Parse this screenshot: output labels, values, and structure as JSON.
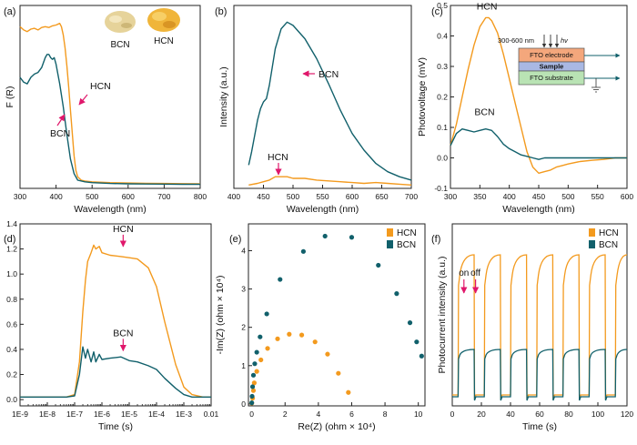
{
  "colors": {
    "hcn": "#f39a1e",
    "bcn": "#11606b",
    "arrow": "#e0176b",
    "axis": "#222222"
  },
  "chart_data": [
    {
      "panel_label": "(a)",
      "type": "line",
      "xlabel": "Wavelength (nm)",
      "ylabel": "F (R)",
      "xlim": [
        300,
        800
      ],
      "xticks": [
        "300",
        "400",
        "500",
        "600",
        "700",
        "800"
      ],
      "yticks": [],
      "annotations": [
        {
          "text": "HCN",
          "x": 462,
          "y": 0.57
        },
        {
          "text": "BCN",
          "x": 420,
          "y": 0.43
        }
      ],
      "image_labels": [
        "BCN",
        "HCN"
      ],
      "series": [
        {
          "name": "HCN",
          "color": "hcn",
          "x": [
            300,
            310,
            320,
            330,
            340,
            350,
            360,
            370,
            380,
            390,
            400,
            410,
            415,
            420,
            425,
            430,
            435,
            440,
            445,
            450,
            455,
            460,
            470,
            480,
            500,
            550,
            600,
            650,
            700,
            750,
            800
          ],
          "y": [
            0.99,
            0.97,
            0.96,
            0.975,
            0.98,
            0.97,
            0.985,
            0.99,
            0.985,
            0.995,
            1.0,
            1.01,
            0.99,
            0.94,
            0.86,
            0.75,
            0.62,
            0.48,
            0.34,
            0.2,
            0.11,
            0.07,
            0.05,
            0.045,
            0.04,
            0.035,
            0.033,
            0.031,
            0.03,
            0.029,
            0.028
          ]
        },
        {
          "name": "BCN",
          "color": "bcn",
          "x": [
            300,
            310,
            320,
            330,
            340,
            350,
            360,
            370,
            375,
            380,
            385,
            390,
            395,
            400,
            410,
            420,
            430,
            440,
            450,
            460,
            480,
            500,
            550,
            600,
            650,
            700,
            750,
            800
          ],
          "y": [
            0.68,
            0.65,
            0.64,
            0.68,
            0.7,
            0.71,
            0.74,
            0.8,
            0.82,
            0.82,
            0.8,
            0.79,
            0.8,
            0.76,
            0.64,
            0.5,
            0.33,
            0.18,
            0.09,
            0.05,
            0.04,
            0.035,
            0.03,
            0.028,
            0.027,
            0.026,
            0.025,
            0.025
          ]
        }
      ]
    },
    {
      "panel_label": "(b)",
      "type": "line",
      "xlabel": "Wavelength (nm)",
      "ylabel": "Intensity (a.u.)",
      "xlim": [
        400,
        700
      ],
      "xticks": [
        "400",
        "450",
        "500",
        "550",
        "600",
        "650",
        "700"
      ],
      "yticks": [],
      "annotations": [
        {
          "text": "BCN",
          "x": 540,
          "y": 0.78
        },
        {
          "text": "HCN",
          "x": 480,
          "y": 0.15
        }
      ],
      "series": [
        {
          "name": "BCN",
          "color": "bcn",
          "x": [
            425,
            430,
            440,
            445,
            450,
            455,
            460,
            470,
            480,
            490,
            500,
            520,
            540,
            560,
            580,
            600,
            620,
            640,
            660,
            680,
            700
          ],
          "y": [
            0.14,
            0.22,
            0.41,
            0.48,
            0.52,
            0.54,
            0.62,
            0.84,
            0.96,
            1.0,
            0.98,
            0.9,
            0.78,
            0.63,
            0.47,
            0.33,
            0.23,
            0.15,
            0.1,
            0.07,
            0.05
          ]
        },
        {
          "name": "HCN",
          "color": "hcn",
          "x": [
            425,
            440,
            450,
            460,
            470,
            480,
            490,
            500,
            520,
            540,
            560,
            580,
            600,
            620,
            640,
            660,
            680,
            700
          ],
          "y": [
            0.02,
            0.03,
            0.04,
            0.05,
            0.07,
            0.07,
            0.07,
            0.06,
            0.06,
            0.05,
            0.045,
            0.04,
            0.035,
            0.03,
            0.035,
            0.03,
            0.025,
            0.02
          ]
        }
      ]
    },
    {
      "panel_label": "(c)",
      "type": "line",
      "xlabel": "Wavelength (nm)",
      "ylabel": "Photovoltage (mV)",
      "xlim": [
        300,
        600
      ],
      "ylim": [
        -0.1,
        0.5
      ],
      "xticks": [
        "300",
        "350",
        "400",
        "450",
        "500",
        "550",
        "600"
      ],
      "yticks": [
        "-0.1",
        "0.0",
        "0.1",
        "0.2",
        "0.3",
        "0.4",
        "0.5"
      ],
      "annotations": [
        {
          "text": "HCN",
          "x": 362,
          "y": 0.48
        },
        {
          "text": "BCN",
          "x": 358,
          "y": 0.135
        }
      ],
      "inset": {
        "light_label": "300-600 nm",
        "hv": "hv",
        "layers": [
          "FTO electrode",
          "Sample",
          "FTO substrate"
        ]
      },
      "series": [
        {
          "name": "HCN",
          "color": "hcn",
          "x": [
            300,
            310,
            320,
            330,
            340,
            350,
            360,
            365,
            370,
            380,
            390,
            400,
            410,
            420,
            430,
            440,
            450,
            460,
            470,
            480,
            490,
            500,
            520,
            540,
            560,
            580,
            600
          ],
          "y": [
            0.04,
            0.11,
            0.2,
            0.29,
            0.37,
            0.43,
            0.46,
            0.46,
            0.45,
            0.41,
            0.34,
            0.26,
            0.18,
            0.1,
            0.02,
            -0.03,
            -0.05,
            -0.045,
            -0.04,
            -0.03,
            -0.025,
            -0.02,
            -0.012,
            -0.008,
            -0.005,
            0.0,
            0.0
          ]
        },
        {
          "name": "BCN",
          "color": "bcn",
          "x": [
            300,
            310,
            320,
            330,
            340,
            350,
            360,
            370,
            380,
            390,
            400,
            410,
            420,
            430,
            440,
            450,
            460,
            480,
            500,
            550,
            600
          ],
          "y": [
            0.04,
            0.08,
            0.095,
            0.09,
            0.085,
            0.09,
            0.095,
            0.09,
            0.07,
            0.045,
            0.03,
            0.02,
            0.01,
            0.005,
            0.0,
            -0.005,
            0.0,
            0.0,
            0.0,
            0.0,
            0.0
          ]
        }
      ]
    },
    {
      "panel_label": "(d)",
      "type": "line",
      "xlabel": "Time (s)",
      "ylabel": "Photovoltage (mV)",
      "xscale": "log",
      "xlim": [
        1e-09,
        0.01
      ],
      "ylim": [
        -0.05,
        1.4
      ],
      "xticks": [
        "1E-9",
        "1E-8",
        "1E-7",
        "1E-6",
        "1E-5",
        "1E-4",
        "1E-3",
        "0.01"
      ],
      "yticks": [
        "0.0",
        "0.2",
        "0.4",
        "0.6",
        "0.8",
        "1.0",
        "1.2",
        "1.4"
      ],
      "annotations": [
        {
          "text": "HCN",
          "x": 6e-06,
          "y": 1.35
        },
        {
          "text": "BCN",
          "x": 6e-06,
          "y": 0.52
        }
      ],
      "series": [
        {
          "name": "HCN",
          "color": "hcn",
          "x": [
            1e-09,
            1e-08,
            5e-08,
            1e-07,
            1.5e-07,
            2e-07,
            2.5e-07,
            3e-07,
            4e-07,
            5e-07,
            6e-07,
            8e-07,
            1e-06,
            2e-06,
            5e-06,
            1e-05,
            2e-05,
            5e-05,
            0.0001,
            0.0002,
            0.0005,
            0.001,
            0.002,
            0.005,
            0.01
          ],
          "y": [
            0.02,
            0.02,
            0.02,
            0.04,
            0.3,
            0.7,
            0.95,
            1.1,
            1.17,
            1.23,
            1.2,
            1.22,
            1.17,
            1.15,
            1.14,
            1.13,
            1.12,
            1.05,
            0.9,
            0.62,
            0.28,
            0.1,
            0.04,
            0.02,
            0.02
          ]
        },
        {
          "name": "BCN",
          "color": "bcn",
          "x": [
            1e-09,
            1e-08,
            5e-08,
            1e-07,
            1.5e-07,
            2e-07,
            2.5e-07,
            3e-07,
            4e-07,
            5e-07,
            6e-07,
            8e-07,
            1e-06,
            2e-06,
            5e-06,
            1e-05,
            2e-05,
            5e-05,
            0.0001,
            0.0002,
            0.0005,
            0.001,
            0.002,
            0.005,
            0.01
          ],
          "y": [
            0.02,
            0.02,
            0.02,
            0.03,
            0.2,
            0.42,
            0.33,
            0.4,
            0.3,
            0.38,
            0.3,
            0.36,
            0.32,
            0.33,
            0.34,
            0.31,
            0.3,
            0.27,
            0.24,
            0.17,
            0.09,
            0.04,
            0.02,
            0.02,
            0.02
          ]
        }
      ]
    },
    {
      "panel_label": "(e)",
      "type": "scatter",
      "xlabel": "Re(Z) (ohm × 10⁴)",
      "ylabel": "-Im(Z) (ohm × 10⁴)",
      "xlim": [
        -0.2,
        10.4
      ],
      "ylim": [
        -0.05,
        4.7
      ],
      "xticks": [
        "0",
        "2",
        "4",
        "6",
        "8",
        "10"
      ],
      "yticks": [
        "0",
        "1",
        "2",
        "3",
        "4"
      ],
      "legend": {
        "position": "top-right",
        "entries": [
          "HCN",
          "BCN"
        ]
      },
      "series": [
        {
          "name": "HCN",
          "color": "hcn",
          "x": [
            0.0,
            0.05,
            0.1,
            0.15,
            0.3,
            0.55,
            0.95,
            1.55,
            2.25,
            3.0,
            3.8,
            4.55,
            5.2,
            5.8
          ],
          "y": [
            0.02,
            0.15,
            0.35,
            0.55,
            0.85,
            1.15,
            1.45,
            1.7,
            1.82,
            1.8,
            1.62,
            1.3,
            0.8,
            0.3
          ]
        },
        {
          "name": "BCN",
          "color": "bcn",
          "x": [
            0.0,
            0.02,
            0.05,
            0.1,
            0.18,
            0.3,
            0.5,
            0.9,
            1.7,
            3.1,
            4.4,
            6.0,
            7.6,
            8.7,
            9.5,
            9.9,
            10.2
          ],
          "y": [
            0.03,
            0.2,
            0.45,
            0.75,
            1.05,
            1.35,
            1.75,
            2.35,
            3.25,
            3.98,
            4.38,
            4.35,
            3.62,
            2.88,
            2.12,
            1.62,
            1.25
          ]
        }
      ]
    },
    {
      "panel_label": "(f)",
      "type": "line",
      "xlabel": "Time (s)",
      "ylabel": "Photocurrent intensity (a.u.)",
      "xlim": [
        0,
        120
      ],
      "xticks": [
        "0",
        "20",
        "40",
        "60",
        "80",
        "100",
        "120"
      ],
      "yticks": [],
      "annotations": [
        {
          "text": "on",
          "x": 8
        },
        {
          "text": "off",
          "x": 16
        }
      ],
      "legend": {
        "position": "top-right",
        "entries": [
          "HCN",
          "BCN"
        ]
      },
      "pulses": {
        "on": [
          4,
          22,
          40,
          58,
          76,
          94,
          112
        ],
        "duration": 11
      },
      "series": [
        {
          "name": "HCN",
          "color": "hcn",
          "baseline": 0.06,
          "plateau_start": 0.72,
          "plateau_end": 0.83
        },
        {
          "name": "BCN",
          "color": "bcn",
          "baseline": 0.05,
          "plateau_start": 0.28,
          "plateau_end": 0.31
        }
      ]
    }
  ]
}
